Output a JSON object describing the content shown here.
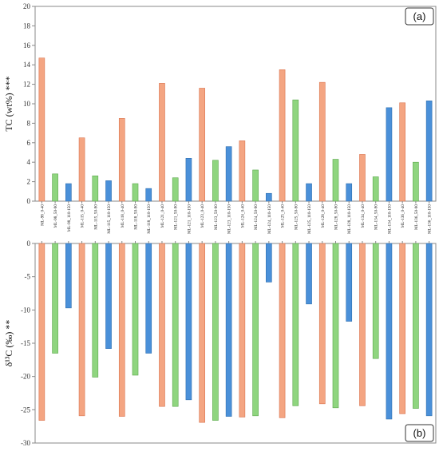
{
  "chart_data": [
    {
      "type": "bar",
      "panel_label": "(a)",
      "ylabel": "TC (wt%) ***",
      "ylim": [
        0,
        20
      ],
      "yticks": [
        0,
        2,
        4,
        6,
        8,
        10,
        12,
        14,
        16,
        18,
        20
      ],
      "grid": false,
      "categories": [
        "ML-98_0-40",
        "ML-98_50-90",
        "ML-98_110-150",
        "ML-115_0-40",
        "ML-115_50-90",
        "ML-115_110-150",
        "ML-118_0-40",
        "ML-118_50-90",
        "ML-118_110-150",
        "ML-121_0-40",
        "ML-121_50-90",
        "ML-121_110-150",
        "ML-123_0-40",
        "ML-123_50-90",
        "ML-123_110-150",
        "ML-124_0-40",
        "ML-124_50-90",
        "ML-124_110-150",
        "ML-125_0-40",
        "ML-125_50-90",
        "ML-125_110-150",
        "ML-128_0-40",
        "ML-128_50-90",
        "ML-128_110-150",
        "ML-134_0-40",
        "ML-134_50-90",
        "ML-134_110-150",
        "ML-136_0-40",
        "ML-136_50-90",
        "ML-136_110-150"
      ],
      "values": [
        14.7,
        2.8,
        1.8,
        6.5,
        2.6,
        2.1,
        8.5,
        1.8,
        1.3,
        12.1,
        2.4,
        4.4,
        11.6,
        4.2,
        5.6,
        6.2,
        3.2,
        0.8,
        13.5,
        10.4,
        1.8,
        12.2,
        4.3,
        1.8,
        4.8,
        2.5,
        9.6,
        10.1,
        4.0,
        10.3
      ]
    },
    {
      "type": "bar",
      "panel_label": "(b)",
      "ylabel": "δ¹³C (‰) **",
      "ylim": [
        -30,
        0
      ],
      "yticks": [
        -30,
        -25,
        -20,
        -15,
        -10,
        -5,
        0
      ],
      "grid": false,
      "values": [
        -26.6,
        -16.5,
        -9.7,
        -25.9,
        -20.1,
        -15.8,
        -26.0,
        -19.8,
        -16.5,
        -24.5,
        -24.5,
        -23.5,
        -26.9,
        -26.6,
        -26.0,
        -26.1,
        -25.9,
        -5.8,
        -26.2,
        -24.4,
        -9.1,
        -24.1,
        -24.7,
        -11.7,
        -24.4,
        -17.3,
        -26.4,
        -25.6,
        -24.8,
        -25.9
      ]
    }
  ],
  "colors": {
    "depth_0_40": "#f4a582",
    "depth_50_90": "#8fd57f",
    "depth_110_150": "#4a90d9",
    "frame": "#888888",
    "stroke_0_40": "#d9734e",
    "stroke_50_90": "#5aa84a",
    "stroke_110_150": "#2f6fb0"
  }
}
